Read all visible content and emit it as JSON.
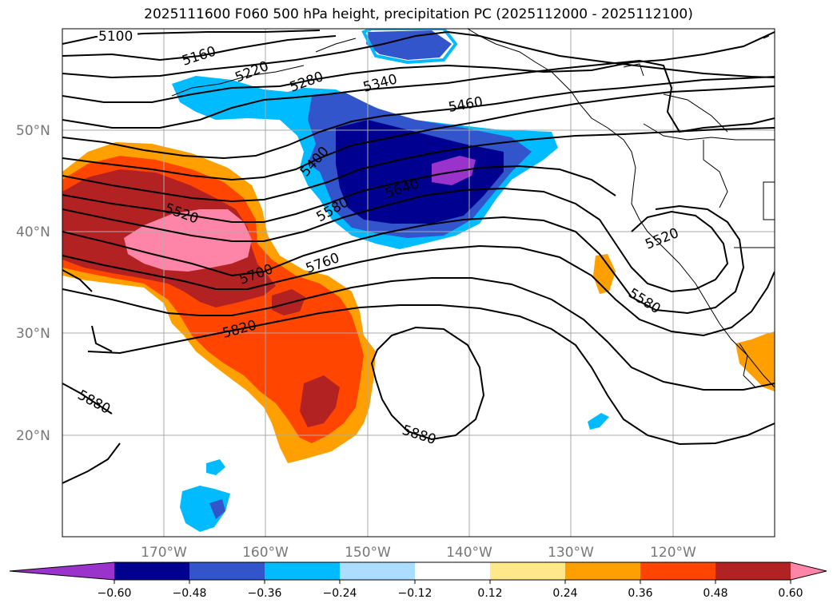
{
  "title": "2025111600 F060 500 hPa height, precipitation PC (2025112000 - 2025112100)",
  "lat_labels": [
    "50°N",
    "40°N",
    "30°N",
    "20°N"
  ],
  "lon_labels": [
    "170°W",
    "160°W",
    "150°W",
    "140°W",
    "130°W",
    "120°W"
  ],
  "contour_labels": {
    "c5100": "5100",
    "c5160": "5160",
    "c5220": "5220",
    "c5280": "5280",
    "c5340": "5340",
    "c5460": "5460",
    "c5400": "5400",
    "c5580a": "5580",
    "c5640": "5640",
    "c5520a": "5520",
    "c5700": "5700",
    "c5760": "5760",
    "c5820": "5820",
    "c5880a": "5880",
    "c5880b": "5880",
    "c5520b": "5520",
    "c5580b": "5580"
  },
  "colorbar": {
    "colors": [
      "#9933cc",
      "#000090",
      "#3355cc",
      "#00bbff",
      "#aaddff",
      "#ffffff",
      "#ffe88a",
      "#ffa000",
      "#ff4500",
      "#b22222",
      "#ff85a8"
    ],
    "ticks": [
      "−0.60",
      "−0.48",
      "−0.36",
      "−0.24",
      "−0.12",
      "0.12",
      "0.24",
      "0.36",
      "0.48",
      "0.60"
    ]
  },
  "colors": {
    "contour": "#000000",
    "grid": "#aaaaaa",
    "coast": "#000000"
  }
}
